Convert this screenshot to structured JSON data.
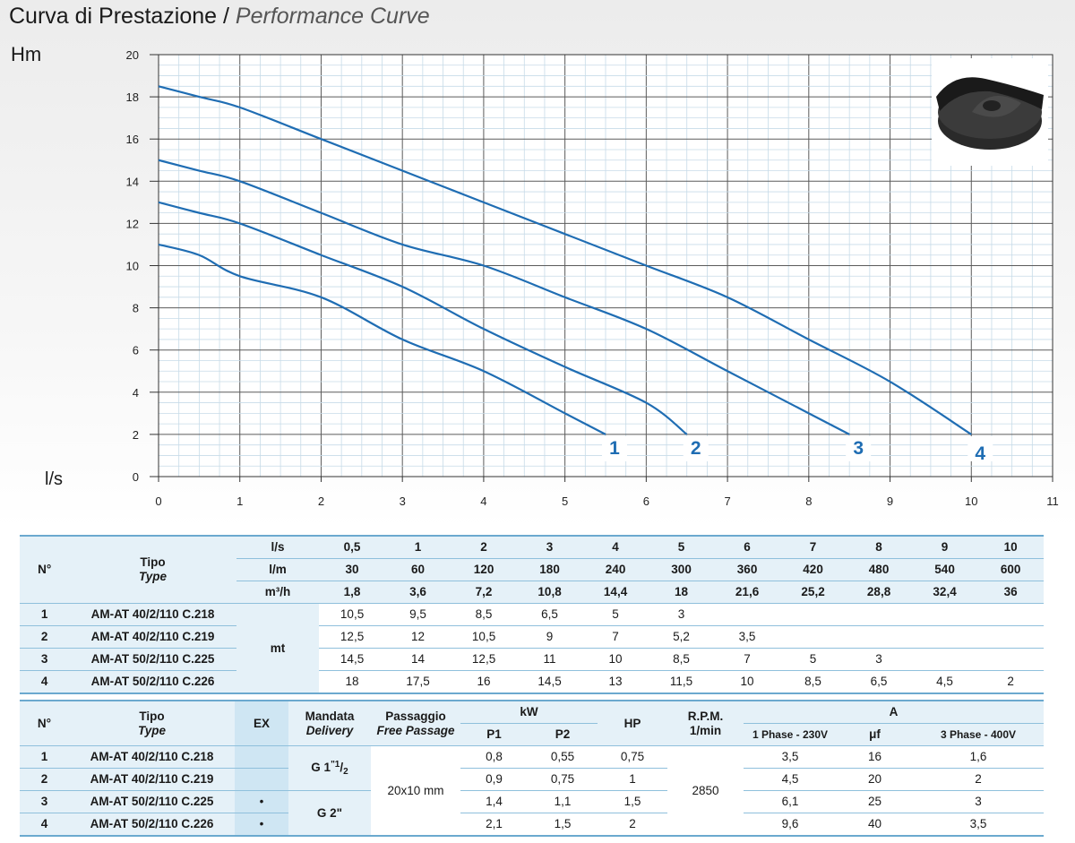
{
  "title_it": "Curva di Prestazione",
  "title_sep": "/",
  "title_en": "Performance Curve",
  "chart_data": {
    "type": "line",
    "ylabel": "Hm",
    "xlabel": "l/s",
    "xlim": [
      0,
      11
    ],
    "ylim": [
      0,
      20
    ],
    "x_ticks": [
      0,
      1,
      2,
      3,
      4,
      5,
      6,
      7,
      8,
      9,
      10,
      11
    ],
    "y_ticks": [
      0,
      2,
      4,
      6,
      8,
      10,
      12,
      14,
      16,
      18,
      20
    ],
    "grid": true,
    "line_color": "#1f6db3",
    "series": [
      {
        "name": "1",
        "x": [
          0,
          0.5,
          1,
          2,
          3,
          4,
          5,
          5.5
        ],
        "y": [
          11,
          10.5,
          9.5,
          8.5,
          6.5,
          5,
          3,
          2
        ]
      },
      {
        "name": "2",
        "x": [
          0,
          0.5,
          1,
          2,
          3,
          4,
          5,
          6,
          6.5
        ],
        "y": [
          13,
          12.5,
          12,
          10.5,
          9,
          7,
          5.2,
          3.5,
          2
        ]
      },
      {
        "name": "3",
        "x": [
          0,
          0.5,
          1,
          2,
          3,
          4,
          5,
          6,
          7,
          8,
          8.5
        ],
        "y": [
          15,
          14.5,
          14,
          12.5,
          11,
          10,
          8.5,
          7,
          5,
          3,
          2
        ]
      },
      {
        "name": "4",
        "x": [
          0,
          0.5,
          1,
          2,
          3,
          4,
          5,
          6,
          7,
          8,
          9,
          10
        ],
        "y": [
          18.5,
          18,
          17.5,
          16,
          14.5,
          13,
          11.5,
          10,
          8.5,
          6.5,
          4.5,
          2
        ]
      }
    ]
  },
  "table1": {
    "no_label": "N°",
    "tipo_label": "Tipo",
    "type_label": "Type",
    "unit_ls": "l/s",
    "unit_lm": "l/m",
    "unit_m3h": "m³/h",
    "flow_ls": [
      "0,5",
      "1",
      "2",
      "3",
      "4",
      "5",
      "6",
      "7",
      "8",
      "9",
      "10"
    ],
    "flow_lm": [
      "30",
      "60",
      "120",
      "180",
      "240",
      "300",
      "360",
      "420",
      "480",
      "540",
      "600"
    ],
    "flow_m3h": [
      "1,8",
      "3,6",
      "7,2",
      "10,8",
      "14,4",
      "18",
      "21,6",
      "25,2",
      "28,8",
      "32,4",
      "36"
    ],
    "head_unit": "mt",
    "rows": [
      {
        "no": "1",
        "model": "AM-AT 40/2/110 C.218",
        "vals": [
          "10,5",
          "9,5",
          "8,5",
          "6,5",
          "5",
          "3",
          "",
          "",
          "",
          "",
          ""
        ]
      },
      {
        "no": "2",
        "model": "AM-AT 40/2/110 C.219",
        "vals": [
          "12,5",
          "12",
          "10,5",
          "9",
          "7",
          "5,2",
          "3,5",
          "",
          "",
          "",
          ""
        ]
      },
      {
        "no": "3",
        "model": "AM-AT 50/2/110 C.225",
        "vals": [
          "14,5",
          "14",
          "12,5",
          "11",
          "10",
          "8,5",
          "7",
          "5",
          "3",
          "",
          ""
        ]
      },
      {
        "no": "4",
        "model": "AM-AT 50/2/110 C.226",
        "vals": [
          "18",
          "17,5",
          "16",
          "14,5",
          "13",
          "11,5",
          "10",
          "8,5",
          "6,5",
          "4,5",
          "2"
        ]
      }
    ]
  },
  "table2": {
    "no_label": "N°",
    "tipo_label": "Tipo",
    "type_label": "Type",
    "ex_label": "EX",
    "mandata_label": "Mandata",
    "delivery_label": "Delivery",
    "passaggio_label": "Passaggio",
    "free_passage_label": "Free Passage",
    "kw_label": "kW",
    "p1_label": "P1",
    "p2_label": "P2",
    "hp_label": "HP",
    "rpm_label": "R.P.M.",
    "rpm_unit": "1/min",
    "a_label": "A",
    "phase1_label": "1 Phase - 230V",
    "uf_label": "μf",
    "phase3_label": "3 Phase - 400V",
    "delivery_small_main": "G 1",
    "delivery_small_sup": "\"1",
    "delivery_small_sub": "2",
    "delivery_large": "G 2\"",
    "free_passage": "20x10 mm",
    "rpm": "2850",
    "rows": [
      {
        "no": "1",
        "model": "AM-AT 40/2/110 C.218",
        "ex": "",
        "p1": "0,8",
        "p2": "0,55",
        "hp": "0,75",
        "a1": "3,5",
        "uf": "16",
        "a3": "1,6"
      },
      {
        "no": "2",
        "model": "AM-AT 40/2/110 C.219",
        "ex": "",
        "p1": "0,9",
        "p2": "0,75",
        "hp": "1",
        "a1": "4,5",
        "uf": "20",
        "a3": "2"
      },
      {
        "no": "3",
        "model": "AM-AT 50/2/110 C.225",
        "ex": "•",
        "p1": "1,4",
        "p2": "1,1",
        "hp": "1,5",
        "a1": "6,1",
        "uf": "25",
        "a3": "3"
      },
      {
        "no": "4",
        "model": "AM-AT 50/2/110 C.226",
        "ex": "•",
        "p1": "2,1",
        "p2": "1,5",
        "hp": "2",
        "a1": "9,6",
        "uf": "40",
        "a3": "3,5"
      }
    ]
  }
}
